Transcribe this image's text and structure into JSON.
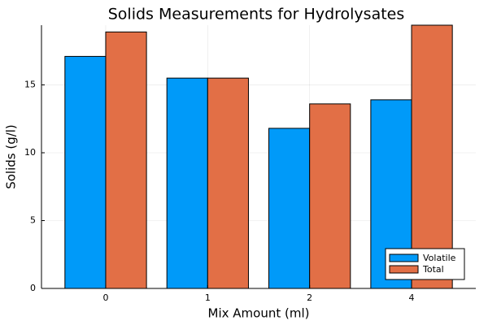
{
  "chart_data": {
    "type": "bar",
    "title": "Solids Measurements for Hydrolysates",
    "xlabel": "Mix Amount (ml)",
    "ylabel": "Solids (g/l)",
    "categories": [
      "0",
      "1",
      "2",
      "4"
    ],
    "series": [
      {
        "name": "Volatile",
        "color": "#009af9",
        "values": [
          17.1,
          15.5,
          11.8,
          13.9
        ]
      },
      {
        "name": "Total",
        "color": "#e26f46",
        "values": [
          18.9,
          15.5,
          13.6,
          19.4
        ]
      }
    ],
    "ylim": [
      0,
      19.4
    ],
    "yticks": [
      0,
      5,
      10,
      15
    ],
    "ytick_labels": [
      "0",
      "5",
      "10",
      "15"
    ],
    "grid": true,
    "legend_position": "bottom-right"
  }
}
